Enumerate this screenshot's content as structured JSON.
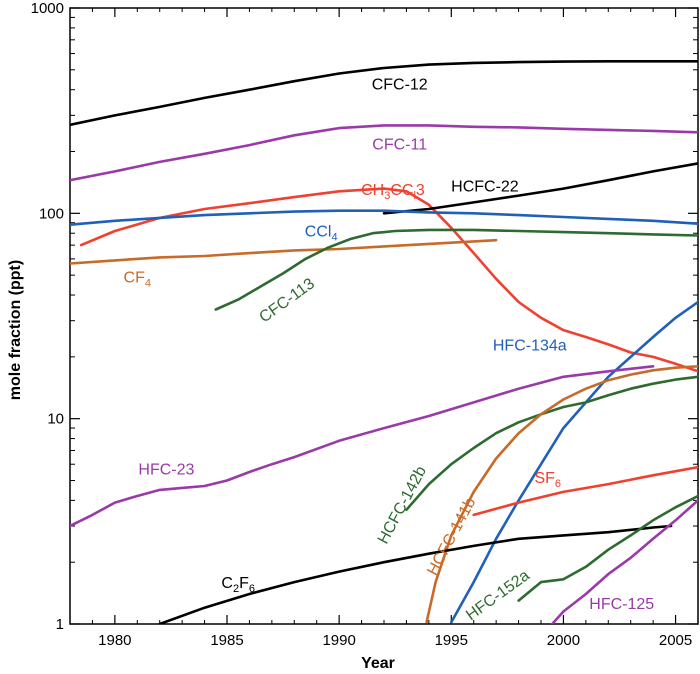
{
  "chart_data": {
    "type": "line",
    "title": "",
    "xlabel": "Year",
    "ylabel": "mole fraction (ppt)",
    "xlim": [
      1978,
      2006
    ],
    "ylim": [
      1,
      1000
    ],
    "yscale": "log",
    "grid": false,
    "legend": "none",
    "x_ticks": [
      1980,
      1985,
      1990,
      1995,
      2000,
      2005
    ],
    "y_ticks": [
      1,
      10,
      100,
      1000
    ],
    "y_tick_labels": [
      "1",
      "10",
      "100",
      "1000"
    ],
    "series": [
      {
        "name": "CFC-12",
        "color": "#000000",
        "label": {
          "text": "CFC-12",
          "sub": [],
          "x": 1992.7,
          "y": 400,
          "rotate": 0
        },
        "points": [
          [
            1978,
            270
          ],
          [
            1980,
            300
          ],
          [
            1982,
            330
          ],
          [
            1984,
            365
          ],
          [
            1986,
            400
          ],
          [
            1988,
            440
          ],
          [
            1990,
            480
          ],
          [
            1992,
            510
          ],
          [
            1994,
            530
          ],
          [
            1996,
            540
          ],
          [
            1998,
            545
          ],
          [
            2000,
            548
          ],
          [
            2002,
            550
          ],
          [
            2004,
            550
          ],
          [
            2006,
            550
          ]
        ]
      },
      {
        "name": "CFC-11",
        "color": "#9a3aa8",
        "label": {
          "text": "CFC-11",
          "sub": [],
          "x": 1992.7,
          "y": 205,
          "rotate": 0
        },
        "points": [
          [
            1978,
            145
          ],
          [
            1980,
            160
          ],
          [
            1982,
            178
          ],
          [
            1984,
            195
          ],
          [
            1986,
            215
          ],
          [
            1988,
            240
          ],
          [
            1990,
            260
          ],
          [
            1992,
            268
          ],
          [
            1994,
            268
          ],
          [
            1996,
            264
          ],
          [
            1998,
            262
          ],
          [
            2000,
            258
          ],
          [
            2002,
            255
          ],
          [
            2004,
            252
          ],
          [
            2006,
            248
          ]
        ]
      },
      {
        "name": "CH3CCl3",
        "color": "#f04030",
        "label": {
          "text": "CH3CCl3",
          "sub": [
            [
              2,
              3
            ],
            [
              5,
              6
            ]
          ],
          "x": 1992.4,
          "y": 123,
          "rotate": 0
        },
        "points": [
          [
            1978.5,
            70
          ],
          [
            1980,
            82
          ],
          [
            1982,
            95
          ],
          [
            1984,
            105
          ],
          [
            1986,
            112
          ],
          [
            1988,
            120
          ],
          [
            1990,
            128
          ],
          [
            1991,
            130
          ],
          [
            1992,
            132
          ],
          [
            1993,
            128
          ],
          [
            1994,
            110
          ],
          [
            1995,
            85
          ],
          [
            1996,
            64
          ],
          [
            1997,
            48
          ],
          [
            1998,
            37
          ],
          [
            1999,
            31
          ],
          [
            2000,
            27
          ],
          [
            2001,
            25
          ],
          [
            2002,
            23
          ],
          [
            2003,
            21
          ],
          [
            2004,
            20
          ],
          [
            2005,
            18.5
          ],
          [
            2006,
            17
          ]
        ]
      },
      {
        "name": "HCFC-22",
        "color": "#000000",
        "label": {
          "text": "HCFC-22",
          "sub": [],
          "x": 1996.5,
          "y": 128,
          "rotate": 0
        },
        "points": [
          [
            1992,
            100
          ],
          [
            1994,
            105
          ],
          [
            1996,
            113
          ],
          [
            1998,
            122
          ],
          [
            2000,
            132
          ],
          [
            2002,
            145
          ],
          [
            2004,
            160
          ],
          [
            2006,
            175
          ]
        ]
      },
      {
        "name": "CCl4",
        "color": "#2060b8",
        "label": {
          "text": "CCl4",
          "sub": [
            [
              3,
              4
            ]
          ],
          "x": 1989.2,
          "y": 77,
          "rotate": 0
        },
        "points": [
          [
            1978,
            88
          ],
          [
            1980,
            92
          ],
          [
            1982,
            95
          ],
          [
            1984,
            98
          ],
          [
            1986,
            100
          ],
          [
            1988,
            102
          ],
          [
            1990,
            103
          ],
          [
            1992,
            103
          ],
          [
            1994,
            101
          ],
          [
            1996,
            100
          ],
          [
            1998,
            98
          ],
          [
            2000,
            96
          ],
          [
            2002,
            94
          ],
          [
            2004,
            92
          ],
          [
            2006,
            89
          ]
        ]
      },
      {
        "name": "CF4",
        "color": "#c86a28",
        "label": {
          "text": "CF4",
          "sub": [
            [
              2,
              3
            ]
          ],
          "x": 1981,
          "y": 46,
          "rotate": 0
        },
        "points": [
          [
            1978,
            57
          ],
          [
            1980,
            59
          ],
          [
            1982,
            61
          ],
          [
            1984,
            62
          ],
          [
            1986,
            64
          ],
          [
            1988,
            66
          ],
          [
            1990,
            67
          ],
          [
            1992,
            69
          ],
          [
            1994,
            71
          ],
          [
            1996,
            73
          ],
          [
            1997,
            74
          ]
        ]
      },
      {
        "name": "CFC-113",
        "color": "#2f6a30",
        "label": {
          "text": "CFC-113",
          "sub": [],
          "x": 1987.8,
          "y": 36,
          "rotate": -36
        },
        "points": [
          [
            1984.5,
            34
          ],
          [
            1985.5,
            38
          ],
          [
            1986.5,
            44
          ],
          [
            1987.5,
            51
          ],
          [
            1988.5,
            60
          ],
          [
            1989.5,
            68
          ],
          [
            1990.5,
            75
          ],
          [
            1991.5,
            80
          ],
          [
            1992.5,
            82
          ],
          [
            1994,
            83
          ],
          [
            1996,
            83
          ],
          [
            1998,
            82
          ],
          [
            2000,
            81
          ],
          [
            2002,
            80
          ],
          [
            2004,
            79
          ],
          [
            2006,
            78
          ]
        ]
      },
      {
        "name": "HFC-134a",
        "color": "#2060b8",
        "label": {
          "text": "HFC-134a",
          "sub": [],
          "x": 1998.5,
          "y": 21.5,
          "rotate": 0
        },
        "points": [
          [
            1995,
            1.02
          ],
          [
            1996,
            1.6
          ],
          [
            1997,
            2.6
          ],
          [
            1998,
            4
          ],
          [
            1999,
            6
          ],
          [
            2000,
            9
          ],
          [
            2001,
            12
          ],
          [
            2002,
            16
          ],
          [
            2003,
            20
          ],
          [
            2004,
            25
          ],
          [
            2005,
            31
          ],
          [
            2006,
            37
          ]
        ]
      },
      {
        "name": "HFC-23",
        "color": "#9a3aa8",
        "label": {
          "text": "HFC-23",
          "sub": [],
          "x": 1982.3,
          "y": 5.35,
          "rotate": 0
        },
        "points": [
          [
            1978,
            3
          ],
          [
            1979,
            3.4
          ],
          [
            1980,
            3.9
          ],
          [
            1981,
            4.2
          ],
          [
            1982,
            4.5
          ],
          [
            1983,
            4.6
          ],
          [
            1984,
            4.7
          ],
          [
            1985,
            5
          ],
          [
            1986,
            5.5
          ],
          [
            1987,
            6
          ],
          [
            1988,
            6.5
          ],
          [
            1990,
            7.8
          ],
          [
            1992,
            9
          ],
          [
            1994,
            10.3
          ],
          [
            1996,
            12
          ],
          [
            1998,
            14
          ],
          [
            2000,
            16
          ],
          [
            2002,
            17
          ],
          [
            2004,
            18
          ]
        ]
      },
      {
        "name": "HCFC-142b",
        "color": "#2f6a30",
        "label": {
          "text": "HCFC-142b",
          "sub": [],
          "x": 1993,
          "y": 3.7,
          "rotate": -62
        },
        "points": [
          [
            1993,
            3.6
          ],
          [
            1994,
            4.8
          ],
          [
            1995,
            6
          ],
          [
            1996,
            7.2
          ],
          [
            1997,
            8.5
          ],
          [
            1998,
            9.6
          ],
          [
            1999,
            10.5
          ],
          [
            2000,
            11.4
          ],
          [
            2001,
            12
          ],
          [
            2002,
            13
          ],
          [
            2003,
            14
          ],
          [
            2004,
            14.8
          ],
          [
            2005,
            15.5
          ],
          [
            2006,
            16
          ]
        ]
      },
      {
        "name": "HCFC-141b",
        "color": "#c86a28",
        "label": {
          "text": "HCFC-141b",
          "sub": [],
          "x": 1995.2,
          "y": 2.6,
          "rotate": -62
        },
        "points": [
          [
            1993.9,
            1.02
          ],
          [
            1994.3,
            1.6
          ],
          [
            1995,
            2.7
          ],
          [
            1996,
            4.4
          ],
          [
            1997,
            6.4
          ],
          [
            1998,
            8.5
          ],
          [
            1999,
            10.5
          ],
          [
            2000,
            12.4
          ],
          [
            2001,
            14
          ],
          [
            2002,
            15.4
          ],
          [
            2003,
            16.4
          ],
          [
            2004,
            17.2
          ],
          [
            2005,
            17.7
          ],
          [
            2006,
            18
          ]
        ]
      },
      {
        "name": "SF6",
        "color": "#f04030",
        "label": {
          "text": "SF6",
          "sub": [
            [
              2,
              3
            ]
          ],
          "x": 1999.3,
          "y": 4.85,
          "rotate": 0
        },
        "points": [
          [
            1996,
            3.4
          ],
          [
            1998,
            3.9
          ],
          [
            2000,
            4.4
          ],
          [
            2002,
            4.8
          ],
          [
            2004,
            5.3
          ],
          [
            2006,
            5.8
          ]
        ]
      },
      {
        "name": "C2F6",
        "color": "#000000",
        "label": {
          "text": "C2F6",
          "sub": [
            [
              1,
              2
            ],
            [
              3,
              4
            ]
          ],
          "x": 1985.5,
          "y": 1.5,
          "rotate": 0
        },
        "points": [
          [
            1982,
            1
          ],
          [
            1984,
            1.2
          ],
          [
            1986,
            1.4
          ],
          [
            1988,
            1.6
          ],
          [
            1990,
            1.8
          ],
          [
            1992,
            2.0
          ],
          [
            1994,
            2.2
          ],
          [
            1996,
            2.4
          ],
          [
            1998,
            2.6
          ],
          [
            2000,
            2.7
          ],
          [
            2002,
            2.8
          ],
          [
            2004,
            2.95
          ],
          [
            2004.8,
            3
          ]
        ]
      },
      {
        "name": "HFC-152a",
        "color": "#2f6a30",
        "label": {
          "text": "HFC-152a",
          "sub": [],
          "x": 1997.2,
          "y": 1.32,
          "rotate": -36
        },
        "points": [
          [
            1998,
            1.3
          ],
          [
            1999,
            1.6
          ],
          [
            2000,
            1.65
          ],
          [
            2001,
            1.9
          ],
          [
            2002,
            2.3
          ],
          [
            2003,
            2.7
          ],
          [
            2004,
            3.2
          ],
          [
            2005,
            3.7
          ],
          [
            2006,
            4.2
          ]
        ]
      },
      {
        "name": "HFC-125",
        "color": "#9a3aa8",
        "label": {
          "text": "HFC-125",
          "sub": [],
          "x": 2002.6,
          "y": 1.18,
          "rotate": 0
        },
        "points": [
          [
            1999.5,
            1.0
          ],
          [
            2000,
            1.15
          ],
          [
            2001,
            1.4
          ],
          [
            2002,
            1.75
          ],
          [
            2003,
            2.1
          ],
          [
            2004,
            2.6
          ],
          [
            2005,
            3.2
          ],
          [
            2006,
            4.0
          ]
        ]
      }
    ]
  }
}
